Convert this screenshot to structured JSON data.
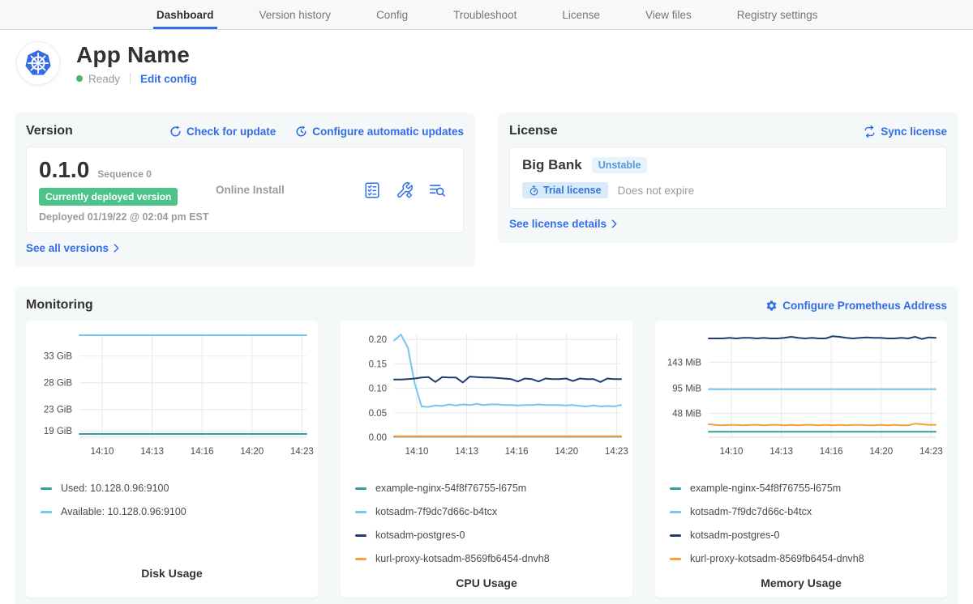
{
  "nav": {
    "tabs": [
      {
        "label": "Dashboard",
        "active": true
      },
      {
        "label": "Version history",
        "active": false
      },
      {
        "label": "Config",
        "active": false
      },
      {
        "label": "Troubleshoot",
        "active": false
      },
      {
        "label": "License",
        "active": false
      },
      {
        "label": "View files",
        "active": false
      },
      {
        "label": "Registry settings",
        "active": false
      }
    ]
  },
  "app": {
    "title": "App Name",
    "status": "Ready",
    "edit_config": "Edit config"
  },
  "version": {
    "heading": "Version",
    "check_update": "Check for update",
    "configure_updates": "Configure automatic updates",
    "number": "0.1.0",
    "sequence": "Sequence 0",
    "deployed_badge": "Currently deployed version",
    "deployed_text": "Deployed 01/19/22 @ 02:04 pm EST",
    "install_type": "Online Install",
    "see_all": "See all versions"
  },
  "license": {
    "heading": "License",
    "sync": "Sync license",
    "name": "Big Bank",
    "channel_badge": "Unstable",
    "type_badge": "Trial license",
    "expiration": "Does not expire",
    "see_details": "See license details"
  },
  "monitoring": {
    "heading": "Monitoring",
    "configure": "Configure Prometheus Address"
  },
  "colors": {
    "link_blue": "#326de6",
    "status_green": "#44bb66",
    "deployed_badge_green": "#4cc389",
    "panel_bg": "#f5f8f9",
    "series_teal": "#2f9e9e",
    "series_lightblue": "#73c6ec",
    "series_navy": "#1f3d70",
    "series_orange": "#f7a03c"
  },
  "chart_data": [
    {
      "type": "line",
      "title": "Disk Usage",
      "xlabel": "",
      "ylabel": "",
      "grid": true,
      "legend_position": "bottom-left",
      "ylim": [
        17.8,
        37.2
      ],
      "yticks": [
        {
          "v": 33,
          "label": "33 GiB"
        },
        {
          "v": 28,
          "label": "28 GiB"
        },
        {
          "v": 23,
          "label": "23 GiB"
        },
        {
          "v": 19,
          "label": "19 GiB"
        }
      ],
      "xticks": [
        "14:10",
        "14:13",
        "14:16",
        "14:20",
        "14:23"
      ],
      "series": [
        {
          "name": "Used: 10.128.0.96:9100",
          "color": "#2f9e9e",
          "values": [
            18.4,
            18.4,
            18.4,
            18.4
          ]
        },
        {
          "name": "Available: 10.128.0.96:9100",
          "color": "#73c6ec",
          "values": [
            36.9,
            36.9,
            36.9,
            36.9
          ]
        }
      ]
    },
    {
      "type": "line",
      "title": "CPU Usage",
      "xlabel": "",
      "ylabel": "",
      "grid": true,
      "legend_position": "bottom-left",
      "ylim": [
        0,
        0.212
      ],
      "yticks": [
        {
          "v": 0.2,
          "label": "0.20"
        },
        {
          "v": 0.15,
          "label": "0.15"
        },
        {
          "v": 0.1,
          "label": "0.10"
        },
        {
          "v": 0.05,
          "label": "0.05"
        },
        {
          "v": 0.0,
          "label": "0.00"
        }
      ],
      "xticks": [
        "14:10",
        "14:13",
        "14:16",
        "14:20",
        "14:23"
      ],
      "series": [
        {
          "name": "example-nginx-54f8f76755-l675m",
          "color": "#2f9e9e",
          "values": [
            0.001,
            0.001,
            0.001,
            0.001
          ]
        },
        {
          "name": "kotsadm-7f9dc7d66c-b4tcx",
          "color": "#73c6ec",
          "values": [
            0.198,
            0.21,
            0.183,
            0.11,
            0.063,
            0.062,
            0.065,
            0.064,
            0.067,
            0.065,
            0.067,
            0.066,
            0.068,
            0.066,
            0.067,
            0.067,
            0.066,
            0.066,
            0.065,
            0.066,
            0.066,
            0.067,
            0.066,
            0.066,
            0.066,
            0.065,
            0.066,
            0.064,
            0.063,
            0.065,
            0.063,
            0.064,
            0.063,
            0.066
          ]
        },
        {
          "name": "kotsadm-postgres-0",
          "color": "#1f3d70",
          "values": [
            0.118,
            0.118,
            0.119,
            0.12,
            0.122,
            0.123,
            0.113,
            0.123,
            0.122,
            0.122,
            0.112,
            0.124,
            0.123,
            0.122,
            0.122,
            0.121,
            0.12,
            0.119,
            0.114,
            0.12,
            0.119,
            0.114,
            0.12,
            0.119,
            0.119,
            0.12,
            0.115,
            0.12,
            0.119,
            0.119,
            0.113,
            0.12,
            0.119,
            0.119
          ]
        },
        {
          "name": "kurl-proxy-kotsadm-8569fb6454-dnvh8",
          "color": "#f7a03c",
          "values": [
            0.002,
            0.002,
            0.002,
            0.002
          ]
        }
      ]
    },
    {
      "type": "line",
      "title": "Memory Usage",
      "xlabel": "",
      "ylabel": "",
      "grid": true,
      "legend_position": "bottom-left",
      "ylim": [
        4,
        196
      ],
      "yticks": [
        {
          "v": 143,
          "label": "143 MiB"
        },
        {
          "v": 95,
          "label": "95 MiB"
        },
        {
          "v": 48,
          "label": "48 MiB"
        }
      ],
      "xticks": [
        "14:10",
        "14:13",
        "14:16",
        "14:20",
        "14:23"
      ],
      "series": [
        {
          "name": "example-nginx-54f8f76755-l675m",
          "color": "#2f9e9e",
          "values": [
            14,
            14,
            14,
            14
          ]
        },
        {
          "name": "kotsadm-7f9dc7d66c-b4tcx",
          "color": "#73c6ec",
          "values": [
            93,
            93,
            93,
            93
          ]
        },
        {
          "name": "kotsadm-postgres-0",
          "color": "#1f3d70",
          "values": [
            187,
            187,
            187,
            188,
            187,
            188,
            188,
            187,
            188,
            187,
            187,
            188,
            190,
            188,
            187,
            188,
            187,
            187,
            191,
            190,
            188,
            187,
            188,
            189,
            188,
            188,
            187,
            187,
            188,
            187,
            190,
            186,
            189,
            188
          ]
        },
        {
          "name": "kurl-proxy-kotsadm-8569fb6454-dnvh8",
          "color": "#f7a03c",
          "values": [
            28,
            27,
            26,
            27,
            27,
            26,
            27,
            27,
            26,
            27,
            27,
            26,
            27,
            26,
            27,
            27,
            26,
            27,
            26,
            27,
            26,
            27,
            27,
            26,
            26,
            27,
            26,
            27,
            26,
            26,
            29,
            28,
            27,
            27
          ]
        }
      ]
    }
  ]
}
